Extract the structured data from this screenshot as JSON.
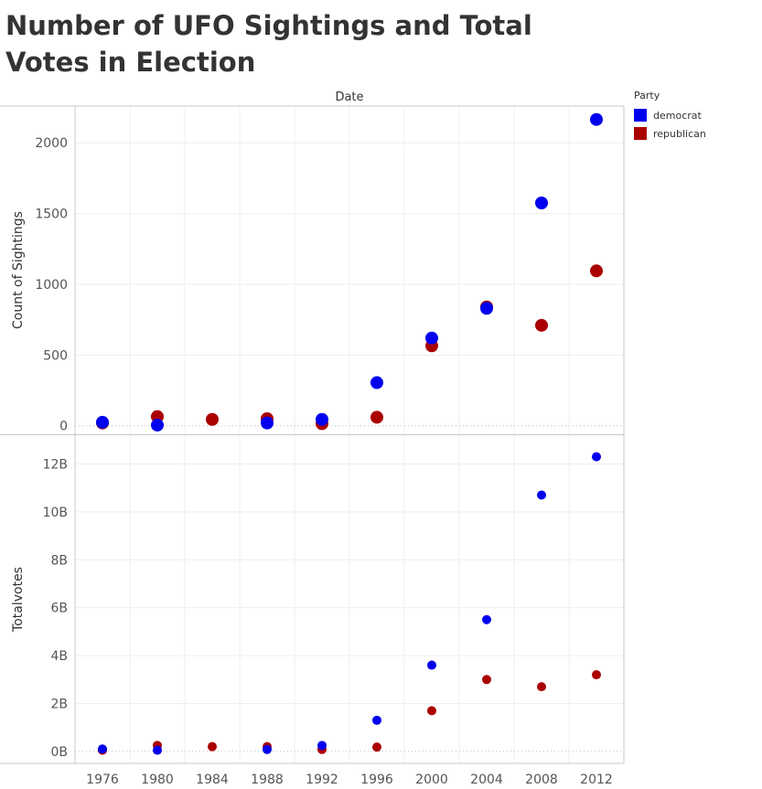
{
  "title": "Number of UFO Sightings and Total Votes in Election",
  "legend": {
    "title": "Party",
    "items": [
      {
        "label": "democrat",
        "color": "#0000ee"
      },
      {
        "label": "republican",
        "color": "#aa0000"
      }
    ]
  },
  "chart_data": [
    {
      "type": "scatter",
      "title": "Number of UFO Sightings and Total Votes in Election",
      "xlabel": "Date",
      "ylabel": "Count of Sightings",
      "x": [
        1976,
        1980,
        1984,
        1988,
        1992,
        1996,
        2000,
        2004,
        2008,
        2012
      ],
      "ylim": [
        -60,
        2260
      ],
      "yticks": [
        0,
        500,
        1000,
        1500,
        2000
      ],
      "ytick_labels": [
        "0",
        "500",
        "1000",
        "1500",
        "2000"
      ],
      "series": [
        {
          "name": "democrat",
          "color": "#0000ee",
          "values": [
            25,
            5,
            null,
            20,
            45,
            305,
            620,
            830,
            1575,
            2165
          ]
        },
        {
          "name": "republican",
          "color": "#aa0000",
          "values": [
            20,
            65,
            45,
            50,
            15,
            60,
            565,
            840,
            710,
            1095
          ]
        }
      ]
    },
    {
      "type": "scatter",
      "xlabel": "Date",
      "ylabel": "Totalvotes",
      "x": [
        1976,
        1980,
        1984,
        1988,
        1992,
        1996,
        2000,
        2004,
        2008,
        2012
      ],
      "ylim": [
        -0.5,
        13.2
      ],
      "unit": "billion",
      "yticks": [
        0,
        2,
        4,
        6,
        8,
        10,
        12
      ],
      "ytick_labels": [
        "0B",
        "2B",
        "4B",
        "6B",
        "8B",
        "10B",
        "12B"
      ],
      "series": [
        {
          "name": "democrat",
          "color": "#0000ee",
          "values": [
            0.1,
            0.05,
            null,
            0.08,
            0.25,
            1.3,
            3.6,
            5.5,
            10.7,
            12.3
          ]
        },
        {
          "name": "republican",
          "color": "#aa0000",
          "values": [
            0.05,
            0.25,
            0.2,
            0.2,
            0.08,
            0.18,
            1.7,
            3.0,
            2.7,
            3.2
          ]
        }
      ]
    }
  ]
}
